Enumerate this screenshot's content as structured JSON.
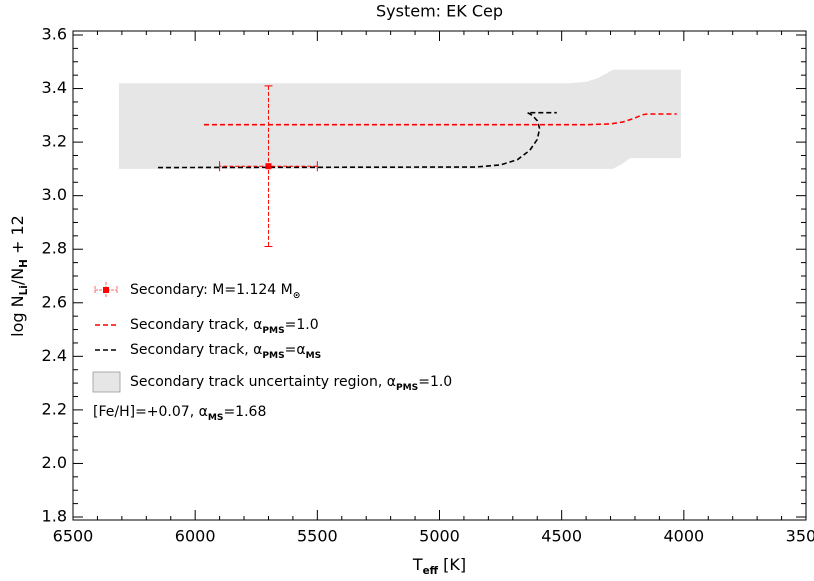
{
  "chart_data": {
    "type": "line",
    "title": "System: EK Cep",
    "xlabel_parts": [
      "T",
      "eff",
      " [K]"
    ],
    "ylabel_parts": [
      "log N",
      "Li",
      "/N",
      "H",
      " + 12"
    ],
    "xlim": [
      6500,
      3500
    ],
    "ylim": [
      1.8,
      3.6
    ],
    "xticks": [
      6500,
      6000,
      5500,
      5000,
      4500,
      4000,
      3500
    ],
    "yticks": [
      1.8,
      {
        "value": 2.0,
        "label": "2.0"
      },
      2.2,
      2.4,
      2.6,
      2.8,
      {
        "value": 3.0,
        "label": "3.0"
      },
      3.2,
      3.4,
      3.6
    ],
    "series": [
      {
        "name_parts": [
          "Secondary: M=1.124 M",
          "⊙"
        ],
        "kind": "errorbar",
        "color": "#ff0000",
        "x": [
          5700
        ],
        "values": [
          3.11
        ],
        "xerr": [
          200
        ],
        "yerr": [
          0.3
        ]
      },
      {
        "name_parts": [
          "Secondary track, α",
          "PMS",
          "=1.0"
        ],
        "kind": "dashed",
        "color": "#ff0000",
        "x": [
          5964,
          4400,
          4300,
          4250,
          4200,
          4170,
          4150,
          4029
        ],
        "values": [
          3.265,
          3.265,
          3.268,
          3.275,
          3.29,
          3.302,
          3.305,
          3.305
        ]
      },
      {
        "name_parts": [
          "Secondary track, α",
          "PMS",
          "=α",
          "MS"
        ],
        "kind": "dashed",
        "color": "#000000",
        "x": [
          6152,
          4850,
          4750,
          4680,
          4630,
          4600,
          4590,
          4600,
          4620,
          4640,
          4520
        ],
        "values": [
          3.105,
          3.107,
          3.115,
          3.135,
          3.17,
          3.21,
          3.25,
          3.28,
          3.3,
          3.31,
          3.31
        ]
      },
      {
        "name_parts": [
          "Secondary track uncertainty region, α",
          "PMS",
          "=1.0"
        ],
        "kind": "band",
        "color": "#e6e6e6",
        "x": [
          6312,
          4470,
          4400,
          4350,
          4290,
          4250,
          4220,
          4012
        ],
        "values": [
          3.42,
          3.42,
          3.425,
          3.44,
          3.47,
          3.47,
          3.47,
          3.47
        ],
        "lower": [
          3.1,
          3.1,
          3.1,
          3.1,
          3.1,
          3.12,
          3.14,
          3.14
        ]
      }
    ],
    "note_parts": [
      "[Fe/H]=+0.07, α",
      "MS",
      "=1.68"
    ]
  }
}
